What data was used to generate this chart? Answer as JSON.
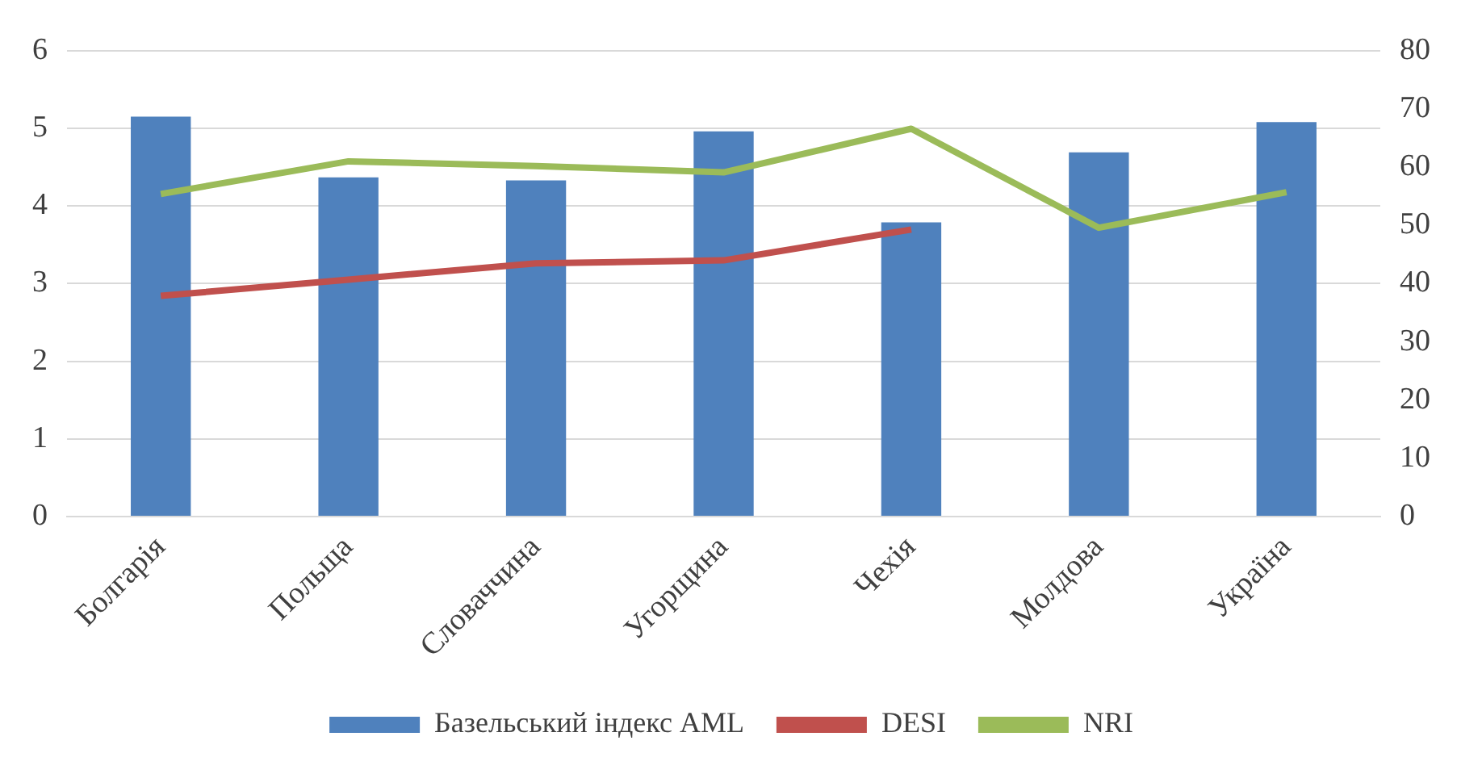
{
  "chart_data": {
    "type": "bar",
    "categories": [
      "Болгарія",
      "Польща",
      "Словаччина",
      "Угорщина",
      "Чехія",
      "Молдова",
      "Україна"
    ],
    "series": [
      {
        "name": "Базельський індекс AML",
        "color": "#4f81bd",
        "values": [
          5.15,
          4.37,
          4.33,
          4.96,
          3.79,
          4.69,
          5.08
        ]
      },
      {
        "name": "DESI",
        "type": "line",
        "axis": "y2",
        "color": "#c0504d",
        "values": [
          37.9,
          40.7,
          43.5,
          44.0,
          49.3,
          null,
          null
        ]
      },
      {
        "name": "NRI",
        "type": "line",
        "axis": "y2",
        "color": "#9bbb59",
        "values": [
          55.4,
          61.0,
          60.2,
          59.1,
          66.6,
          49.6,
          55.7
        ]
      }
    ],
    "ylim": [
      0,
      6
    ],
    "yticks": [
      0,
      1,
      2,
      3,
      4,
      5,
      6
    ],
    "y2lim": [
      0,
      80
    ],
    "y2ticks": [
      0,
      10,
      20,
      30,
      40,
      50,
      60,
      70,
      80
    ],
    "grid": "y",
    "legend": "bottom",
    "marker": "none",
    "line_style": "solid"
  }
}
